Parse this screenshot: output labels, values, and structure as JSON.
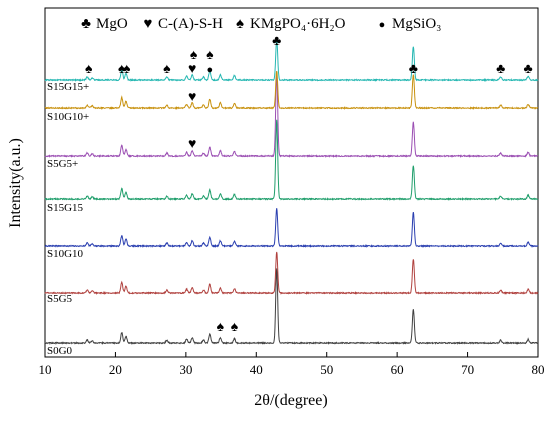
{
  "chart_data": {
    "type": "line",
    "xlabel": "2θ/(degree)",
    "ylabel": "Intensity(a.u.)",
    "xlim": [
      10,
      80
    ],
    "xticks": [
      10,
      20,
      30,
      40,
      50,
      60,
      70,
      80
    ],
    "grid": false,
    "legend_position": "top",
    "legend": [
      {
        "symbol": "♣",
        "label": "MgO"
      },
      {
        "symbol": "♥",
        "label": "C-(A)-S-H"
      },
      {
        "symbol": "♠",
        "label": "KMgPO₄·6H₂O"
      },
      {
        "symbol": "●",
        "label": "MgSiO₃"
      }
    ],
    "series": [
      {
        "name": "S0G0",
        "color": "#404040",
        "scale": 1.0
      },
      {
        "name": "S5G5",
        "color": "#b0413e",
        "scale": 0.55
      },
      {
        "name": "S10G10",
        "color": "#2a3fb0",
        "scale": 0.5
      },
      {
        "name": "S15G15",
        "color": "#1f9e6b",
        "scale": 1.05
      },
      {
        "name": "S5G5+",
        "color": "#9b4fb3",
        "scale": 1.1
      },
      {
        "name": "S10G10+",
        "color": "#c8910e",
        "scale": 0.5
      },
      {
        "name": "S15G15+",
        "color": "#25b7b2",
        "scale": 0.55
      }
    ],
    "peaks": [
      {
        "x": 16.0,
        "h": 0.04
      },
      {
        "x": 16.7,
        "h": 0.03
      },
      {
        "x": 20.9,
        "h": 0.14
      },
      {
        "x": 21.5,
        "h": 0.09
      },
      {
        "x": 27.3,
        "h": 0.04
      },
      {
        "x": 30.1,
        "h": 0.05
      },
      {
        "x": 30.9,
        "h": 0.07
      },
      {
        "x": 32.5,
        "h": 0.04
      },
      {
        "x": 33.4,
        "h": 0.12
      },
      {
        "x": 34.9,
        "h": 0.07
      },
      {
        "x": 36.9,
        "h": 0.06
      },
      {
        "x": 42.9,
        "h": 1.0
      },
      {
        "x": 62.3,
        "h": 0.45
      },
      {
        "x": 74.7,
        "h": 0.04
      },
      {
        "x": 78.6,
        "h": 0.05
      }
    ],
    "annotations": [
      {
        "symbol": "♠",
        "x": 16.2,
        "series": "S15G15+"
      },
      {
        "symbol": "♠",
        "x": 20.9,
        "series": "S15G15+"
      },
      {
        "symbol": "♠",
        "x": 21.6,
        "series": "S15G15+"
      },
      {
        "symbol": "♠",
        "x": 27.3,
        "series": "S15G15+"
      },
      {
        "symbol": "♥",
        "x": 30.9,
        "series": "S15G15+"
      },
      {
        "symbol": "♠",
        "x": 31.1,
        "series": "S15G15+"
      },
      {
        "symbol": "●",
        "x": 33.4,
        "series": "S15G15+"
      },
      {
        "symbol": "♠",
        "x": 33.4,
        "series": "S15G15+"
      },
      {
        "symbol": "♣",
        "x": 42.9,
        "series": "S15G15+"
      },
      {
        "symbol": "♣",
        "x": 62.3,
        "series": "S15G15+"
      },
      {
        "symbol": "♣",
        "x": 74.7,
        "series": "S15G15+"
      },
      {
        "symbol": "♣",
        "x": 78.6,
        "series": "S15G15+"
      },
      {
        "symbol": "♥",
        "x": 30.9,
        "series": "S10G10+"
      },
      {
        "symbol": "♥",
        "x": 30.9,
        "series": "S5G5+"
      },
      {
        "symbol": "♠",
        "x": 34.9,
        "series": "S0G0"
      },
      {
        "symbol": "♠",
        "x": 36.9,
        "series": "S0G0"
      }
    ]
  }
}
